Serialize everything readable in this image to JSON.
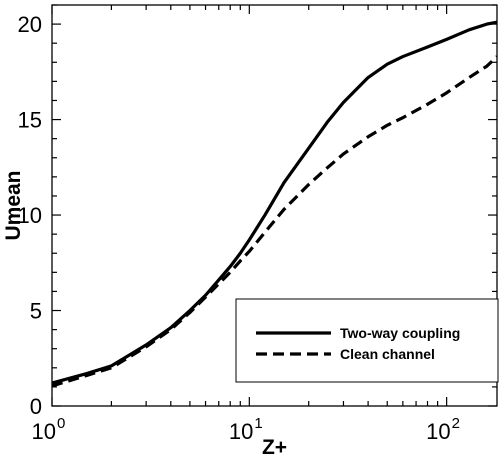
{
  "chart_data": {
    "type": "line",
    "xlabel": "Z+",
    "ylabel": "Umean",
    "xscale": "log",
    "xlim": [
      1,
      180
    ],
    "ylim": [
      0,
      21
    ],
    "y_ticks": [
      0,
      5,
      10,
      15,
      20
    ],
    "x_ticks": [
      {
        "value": 1,
        "base": "10",
        "exp": "0"
      },
      {
        "value": 10,
        "base": "10",
        "exp": "1"
      },
      {
        "value": 100,
        "base": "10",
        "exp": "2"
      }
    ],
    "grid": false,
    "legend_position": "bottom-right",
    "series": [
      {
        "name": "Two-way coupling",
        "style": "solid",
        "color": "#000000",
        "x": [
          1,
          1.5,
          2,
          3,
          4,
          5,
          6,
          7,
          8,
          9,
          10,
          12,
          15,
          20,
          25,
          30,
          40,
          50,
          60,
          80,
          100,
          130,
          160,
          180
        ],
        "y": [
          1.2,
          1.7,
          2.1,
          3.2,
          4.1,
          5.0,
          5.8,
          6.6,
          7.3,
          8.0,
          8.7,
          10.0,
          11.7,
          13.5,
          14.9,
          15.9,
          17.2,
          17.9,
          18.3,
          18.8,
          19.2,
          19.7,
          20.0,
          20.1
        ]
      },
      {
        "name": "Clean channel",
        "style": "dashed",
        "color": "#000000",
        "x": [
          1,
          1.5,
          2,
          3,
          4,
          5,
          6,
          7,
          8,
          9,
          10,
          12,
          15,
          20,
          25,
          30,
          40,
          50,
          60,
          80,
          100,
          130,
          160,
          180
        ],
        "y": [
          1.05,
          1.6,
          2.0,
          3.1,
          4.0,
          4.9,
          5.7,
          6.4,
          7.0,
          7.6,
          8.1,
          9.1,
          10.3,
          11.6,
          12.5,
          13.2,
          14.1,
          14.7,
          15.1,
          15.8,
          16.4,
          17.2,
          17.8,
          18.3
        ]
      }
    ]
  }
}
